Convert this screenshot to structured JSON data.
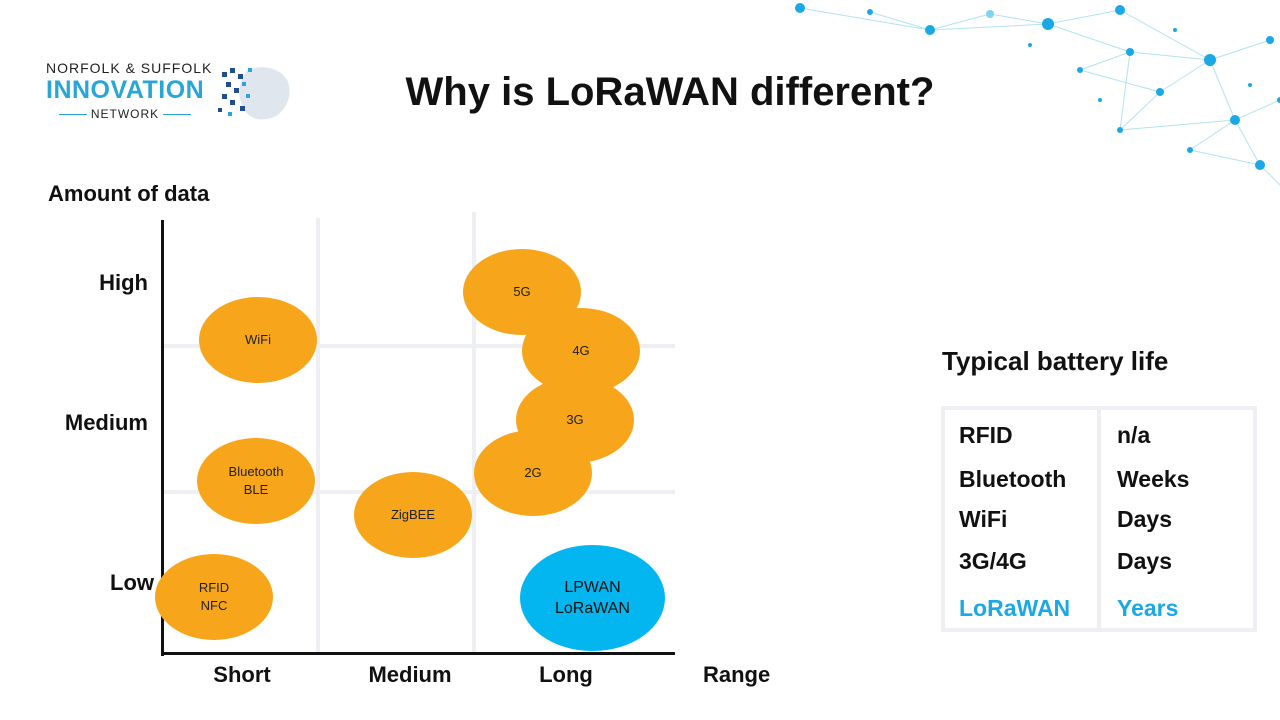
{
  "logo": {
    "top": "NORFOLK & SUFFOLK",
    "main": "INNOVATION",
    "bottom": "NETWORK"
  },
  "title": "Why is LoRaWAN different?",
  "chart": {
    "y_axis_label": "Amount of data",
    "y_ticks": [
      "High",
      "Medium",
      "Low"
    ],
    "x_ticks": [
      "Short",
      "Medium",
      "Long"
    ],
    "x_axis_label": "Range",
    "bubbles": [
      {
        "id": "5g",
        "lines": [
          "5G"
        ]
      },
      {
        "id": "wifi",
        "lines": [
          "WiFi"
        ]
      },
      {
        "id": "4g",
        "lines": [
          "4G"
        ]
      },
      {
        "id": "3g",
        "lines": [
          "3G"
        ]
      },
      {
        "id": "bluetooth",
        "lines": [
          "Bluetooth",
          "BLE"
        ]
      },
      {
        "id": "2g",
        "lines": [
          "2G"
        ]
      },
      {
        "id": "zigbee",
        "lines": [
          "ZigBEE"
        ]
      },
      {
        "id": "rfid",
        "lines": [
          "RFID",
          "NFC"
        ]
      },
      {
        "id": "lpwan",
        "lines": [
          "LPWAN",
          "LoRaWAN"
        ]
      }
    ],
    "colors": {
      "orange": "#f7a61c",
      "blue": "#04b6f0",
      "grid": "#eeeff2"
    }
  },
  "battery": {
    "title": "Typical battery life",
    "rows": [
      {
        "tech": "RFID",
        "life": "n/a"
      },
      {
        "tech": "Bluetooth",
        "life": "Weeks"
      },
      {
        "tech": "WiFi",
        "life": "Days"
      },
      {
        "tech": "3G/4G",
        "life": "Days"
      },
      {
        "tech": "LoRaWAN",
        "life": "Years"
      }
    ],
    "highlight_color": "#1aa9e4"
  }
}
